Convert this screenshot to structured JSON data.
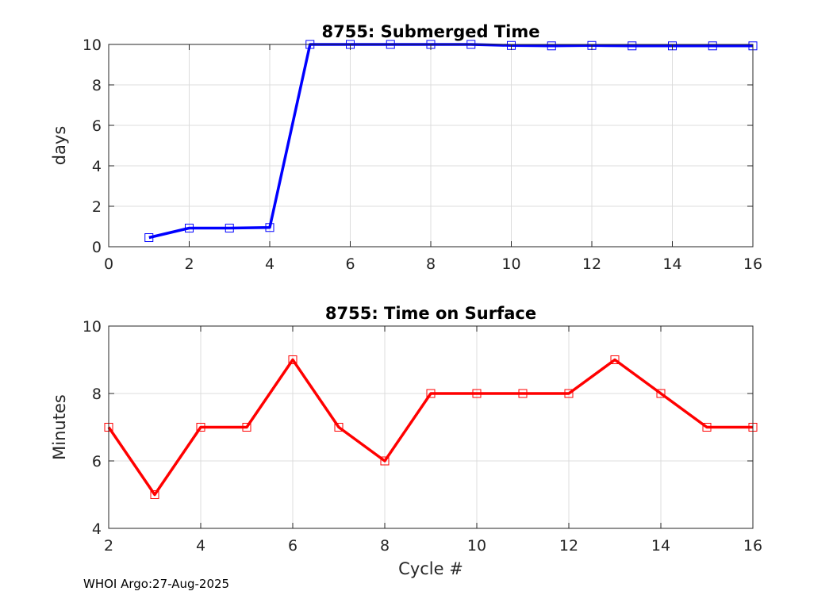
{
  "footer": "WHOI Argo:27-Aug-2025",
  "chart_data": [
    {
      "type": "line",
      "title": "8755: Submerged Time",
      "xlabel": "",
      "ylabel": "days",
      "xlim": [
        0,
        16
      ],
      "ylim": [
        0,
        10
      ],
      "xticks": [
        0,
        2,
        4,
        6,
        8,
        10,
        12,
        14,
        16
      ],
      "yticks": [
        0,
        2,
        4,
        6,
        8,
        10
      ],
      "grid": true,
      "marker": "square",
      "color": "#0000ff",
      "series": [
        {
          "x": [
            1,
            2,
            3,
            4,
            5,
            6,
            7,
            8,
            9,
            10,
            11,
            12,
            13,
            14,
            15,
            16
          ],
          "y": [
            0.45,
            0.92,
            0.92,
            0.95,
            10.0,
            10.0,
            10.0,
            10.0,
            10.0,
            9.95,
            9.93,
            9.95,
            9.93,
            9.93,
            9.93,
            9.93
          ]
        }
      ]
    },
    {
      "type": "line",
      "title": "8755: Time on Surface",
      "xlabel": "Cycle #",
      "ylabel": "Minutes",
      "xlim": [
        2,
        16
      ],
      "ylim": [
        4,
        10
      ],
      "xticks": [
        2,
        4,
        6,
        8,
        10,
        12,
        14,
        16
      ],
      "yticks": [
        4,
        6,
        8,
        10
      ],
      "grid": true,
      "marker": "square",
      "color": "#ff0000",
      "series": [
        {
          "x": [
            2,
            3,
            4,
            5,
            6,
            7,
            8,
            9,
            10,
            11,
            12,
            13,
            14,
            15,
            16
          ],
          "y": [
            7,
            5,
            7,
            7,
            9,
            7,
            6,
            8,
            8,
            8,
            8,
            9,
            8,
            7,
            7
          ]
        }
      ]
    }
  ]
}
